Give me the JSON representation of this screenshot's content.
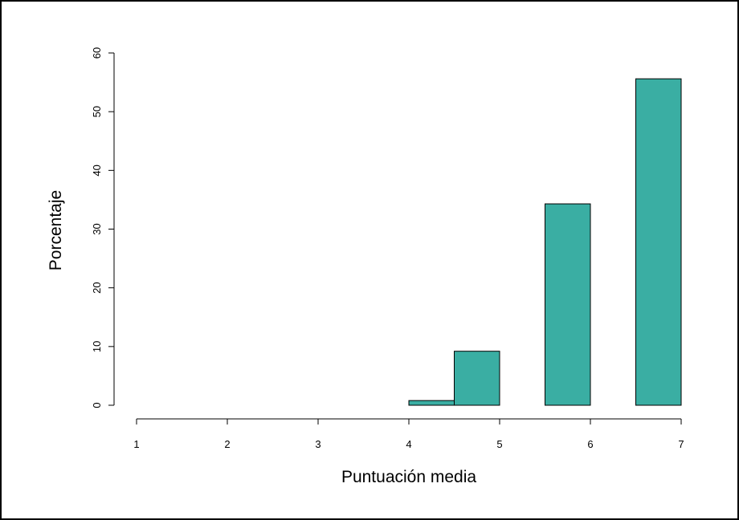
{
  "chart_data": {
    "type": "bar",
    "subtype": "histogram",
    "xlabel": "Puntuación media",
    "ylabel": "Porcentaje",
    "xlim": [
      1,
      7
    ],
    "ylim": [
      0,
      60
    ],
    "x_ticks": [
      1,
      2,
      3,
      4,
      5,
      6,
      7
    ],
    "y_ticks": [
      0,
      10,
      20,
      30,
      40,
      50,
      60
    ],
    "bins": [
      {
        "x0": 4.0,
        "x1": 4.5,
        "value": 0.8
      },
      {
        "x0": 4.5,
        "x1": 5.0,
        "value": 9.2
      },
      {
        "x0": 5.5,
        "x1": 6.0,
        "value": 34.3
      },
      {
        "x0": 6.5,
        "x1": 7.0,
        "value": 55.6
      }
    ],
    "bar_color": "#3aaea3",
    "bar_edge_color": "#000000",
    "grid": false,
    "legend": "none"
  }
}
